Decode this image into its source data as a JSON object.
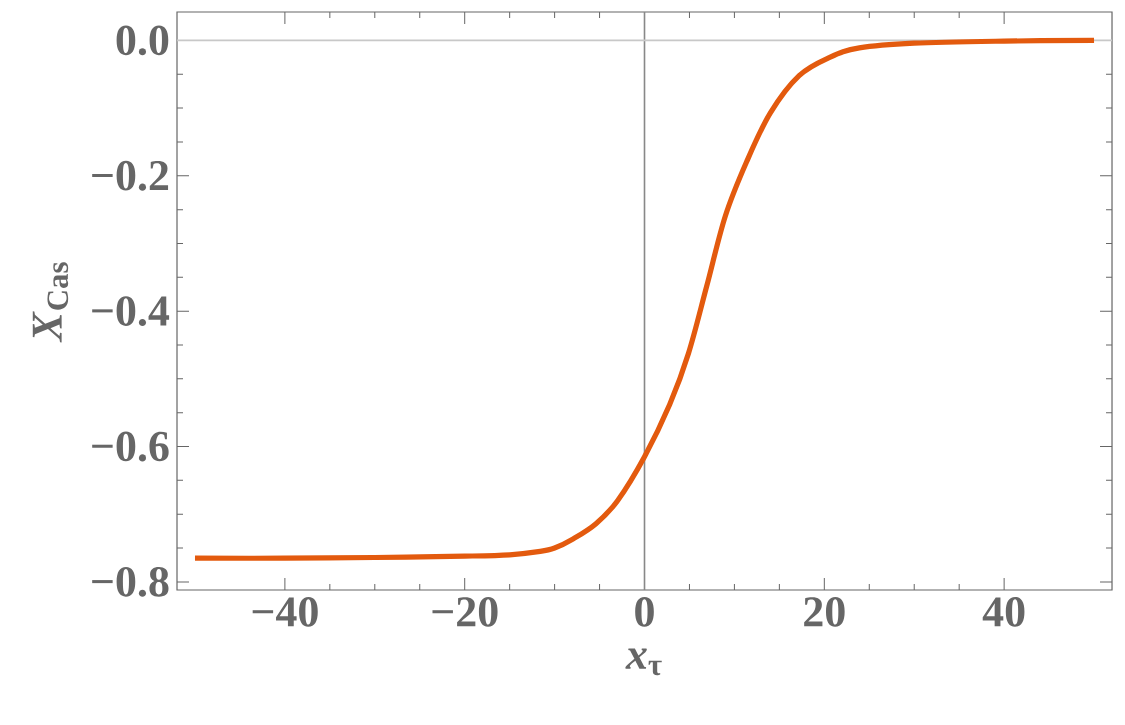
{
  "chart_data": {
    "type": "line",
    "xlabel": "*x*$_{τ}$",
    "ylabel": "*X*$_{Cas}$",
    "xlim": [
      -52,
      52
    ],
    "ylim": [
      -0.812,
      0.042
    ],
    "xticks": [
      {
        "value": -40,
        "label": "−40"
      },
      {
        "value": -20,
        "label": "−20"
      },
      {
        "value": 0,
        "label": "0"
      },
      {
        "value": 20,
        "label": "20"
      },
      {
        "value": 40,
        "label": "40"
      }
    ],
    "yticks": [
      {
        "value": 0,
        "label": "0.0"
      },
      {
        "value": -0.2,
        "label": "−0.2"
      },
      {
        "value": -0.4,
        "label": "−0.4"
      },
      {
        "value": -0.6,
        "label": "−0.6"
      },
      {
        "value": -0.8,
        "label": "−0.8"
      }
    ],
    "ref_lines": [
      {
        "axis": "x",
        "value": 0,
        "color": "#888888"
      },
      {
        "axis": "y",
        "value": 0,
        "color": "#c8c8c8"
      }
    ],
    "marker": "none",
    "line_style": "solid",
    "x": [
      -50,
      -40,
      -30,
      -20,
      -15,
      -11.6,
      -10,
      -8,
      -5.4,
      -3,
      0,
      2.8,
      4.9,
      6.9,
      9.0,
      11.4,
      14.0,
      17.2,
      20.6,
      23.9,
      30,
      40,
      50
    ],
    "series": [
      {
        "color": "#e35a0e",
        "values": [
          -0.765,
          -0.765,
          -0.764,
          -0.762,
          -0.76,
          -0.755,
          -0.75,
          -0.737,
          -0.714,
          -0.68,
          -0.615,
          -0.538,
          -0.462,
          -0.364,
          -0.259,
          -0.178,
          -0.107,
          -0.052,
          -0.025,
          -0.011,
          -0.004,
          -0.001,
          0.0
        ]
      }
    ]
  }
}
